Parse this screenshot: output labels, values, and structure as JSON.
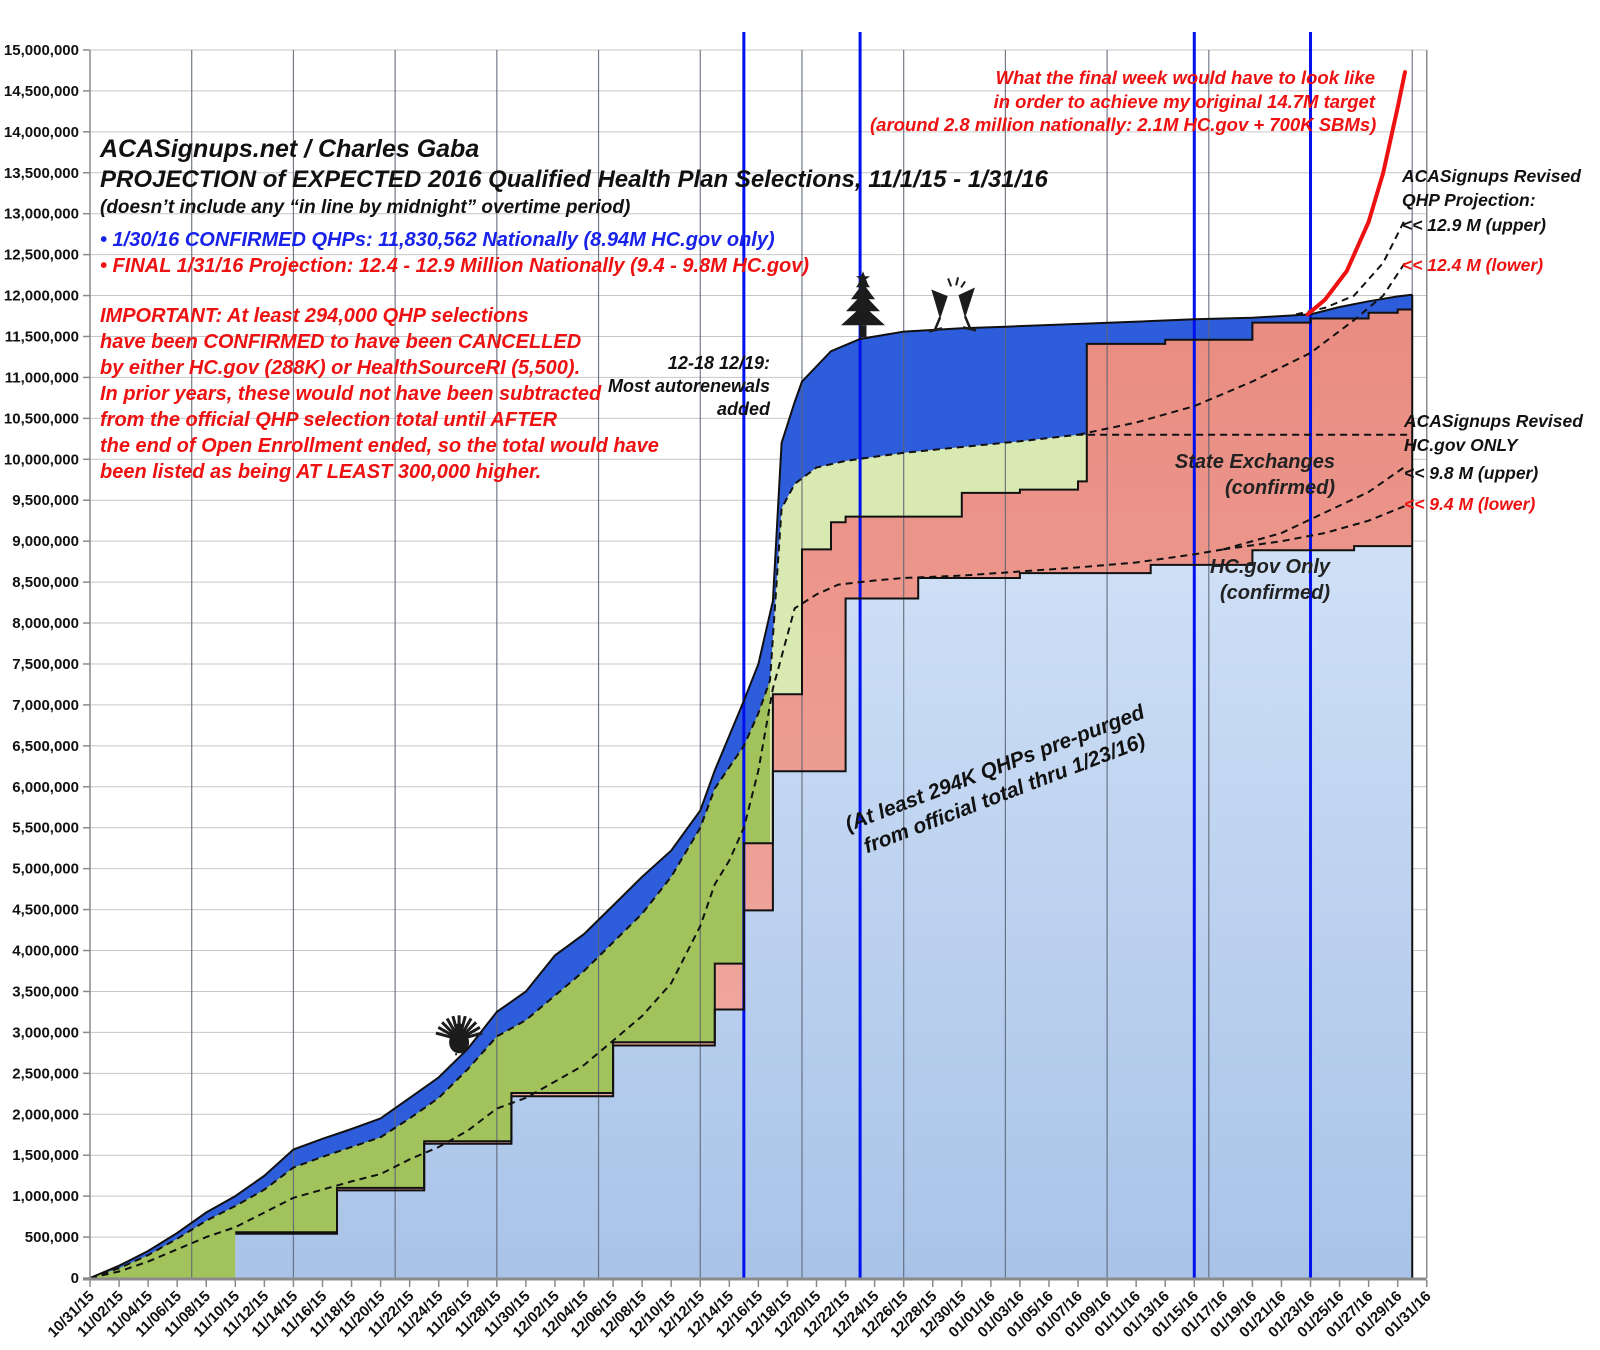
{
  "text": {
    "title": [
      "ACASignups.net / Charles Gaba",
      "PROJECTION of EXPECTED 2016 Qualified Health Plan Selections, 11/1/15 - 1/31/16",
      "(doesn’t include any “in line by midnight” overtime period)"
    ],
    "bullet_blue": "• 1/30/16 CONFIRMED QHPs: 11,830,562 Nationally (8.94M HC.gov only)",
    "bullet_red": "• FINAL 1/31/16 Projection: 12.4 - 12.9 Million Nationally (9.4 - 9.8M HC.gov)",
    "important": [
      "IMPORTANT: At least 294,000 QHP selections",
      "have been CONFIRMED to have been CANCELLED",
      "by either HC.gov (288K) or HealthSourceRI (5,500).",
      "In prior years, these would not have been subtracted",
      "from the official QHP selection total until AFTER",
      "the end of Open Enrollment ended, so the total would have",
      "been listed as being AT LEAST 300,000 higher."
    ],
    "autorenewals": [
      "12-18 12/19:",
      "Most autorenewals",
      "added"
    ],
    "final_week": [
      "What the final week would have to look like",
      "in order to achieve my original 14.7M target",
      "(around 2.8 million nationally: 2.1M HC.gov + 700K SBMs)"
    ],
    "state_exchanges": [
      "State Exchanges",
      "(confirmed)"
    ],
    "hcgov_only": [
      "HC.gov Only",
      "(confirmed)"
    ],
    "prepurged": [
      "(At least 294K QHPs pre-purged",
      "from official total thru 1/23/16)"
    ],
    "legend_qhp": [
      "ACASignups Revised",
      "QHP Projection:",
      "<< 12.9 M (upper)",
      "<< 12.4 M (lower)"
    ],
    "legend_hcgov": [
      "ACASignups Revised",
      "HC.gov ONLY",
      "<< 9.8 M (upper)",
      "<< 9.4 M (lower)"
    ]
  },
  "colors": {
    "blue_area": "#2e5ddc",
    "green_dark": "#a2c25c",
    "green_pale": "#d9e9b2",
    "salmon_top": "#e98c81",
    "salmon_bottom": "#f2afa6",
    "lightblue_top": "#cfe0f6",
    "lightblue_bottom": "#a9c3e8",
    "deadline_line": "#0010ee",
    "red_line": "#ee1111",
    "grid": "#c6c6c6",
    "weekly_grid": "#5a6472",
    "axis": "#8a8a8a",
    "outline": "#111111"
  },
  "chart_data": {
    "type": "area",
    "title": "PROJECTION of EXPECTED 2016 Qualified Health Plan Selections, 11/1/15 - 1/31/16",
    "x_unit": "days since 10/31/15, tick every 2 days",
    "y_axis": {
      "min": 0,
      "max": 15000000,
      "step": 500000
    },
    "x_tick_labels": [
      "10/31/15",
      "11/02/15",
      "11/04/15",
      "11/06/15",
      "11/08/15",
      "11/10/15",
      "11/12/15",
      "11/14/15",
      "11/16/15",
      "11/18/15",
      "11/20/15",
      "11/22/15",
      "11/24/15",
      "11/26/15",
      "11/28/15",
      "11/30/15",
      "12/02/15",
      "12/04/15",
      "12/06/15",
      "12/08/15",
      "12/10/15",
      "12/12/15",
      "12/14/15",
      "12/16/15",
      "12/18/15",
      "12/20/15",
      "12/22/15",
      "12/24/15",
      "12/26/15",
      "12/28/15",
      "12/30/15",
      "01/01/16",
      "01/03/16",
      "01/05/16",
      "01/07/16",
      "01/09/16",
      "01/11/16",
      "01/13/16",
      "01/15/16",
      "01/17/16",
      "01/19/16",
      "01/21/16",
      "01/23/16",
      "01/25/16",
      "01/27/16",
      "01/29/16",
      "01/31/16"
    ],
    "end_day": 91,
    "axis_end_day": 92,
    "series": {
      "projection_total_upper_blue_top_millions": [
        [
          0,
          0
        ],
        [
          2,
          0.15
        ],
        [
          4,
          0.33
        ],
        [
          6,
          0.55
        ],
        [
          8,
          0.8
        ],
        [
          10,
          1.0
        ],
        [
          12,
          1.25
        ],
        [
          14,
          1.57
        ],
        [
          16,
          1.7
        ],
        [
          18,
          1.82
        ],
        [
          20,
          1.95
        ],
        [
          22,
          2.2
        ],
        [
          24,
          2.45
        ],
        [
          26,
          2.8
        ],
        [
          28,
          3.25
        ],
        [
          30,
          3.5
        ],
        [
          32,
          3.94
        ],
        [
          34,
          4.2
        ],
        [
          36,
          4.55
        ],
        [
          38,
          4.9
        ],
        [
          40,
          5.22
        ],
        [
          42,
          5.71
        ],
        [
          43,
          6.2
        ],
        [
          45,
          7.05
        ],
        [
          46,
          7.5
        ],
        [
          47,
          8.27
        ],
        [
          47.6,
          10.2
        ],
        [
          48.5,
          10.7
        ],
        [
          49,
          10.95
        ],
        [
          51,
          11.32
        ],
        [
          53,
          11.47
        ],
        [
          56,
          11.56
        ],
        [
          60,
          11.6
        ],
        [
          63,
          11.62
        ],
        [
          69,
          11.66
        ],
        [
          76,
          11.71
        ],
        [
          80,
          11.73
        ],
        [
          84,
          11.77
        ],
        [
          86,
          11.86
        ],
        [
          88,
          11.93
        ],
        [
          90,
          11.99
        ],
        [
          91,
          12.01
        ]
      ],
      "projection_lower_green_top_millions": [
        [
          0,
          0
        ],
        [
          2,
          0.12
        ],
        [
          4,
          0.28
        ],
        [
          6,
          0.48
        ],
        [
          8,
          0.7
        ],
        [
          10,
          0.88
        ],
        [
          12,
          1.08
        ],
        [
          14,
          1.35
        ],
        [
          16,
          1.48
        ],
        [
          18,
          1.6
        ],
        [
          20,
          1.72
        ],
        [
          22,
          1.95
        ],
        [
          24,
          2.2
        ],
        [
          26,
          2.55
        ],
        [
          28,
          2.95
        ],
        [
          30,
          3.15
        ],
        [
          32,
          3.45
        ],
        [
          34,
          3.75
        ],
        [
          36,
          4.1
        ],
        [
          38,
          4.45
        ],
        [
          40,
          4.9
        ],
        [
          42,
          5.5
        ],
        [
          43,
          5.98
        ],
        [
          45,
          6.5
        ],
        [
          46,
          6.9
        ],
        [
          46.8,
          7.3
        ],
        [
          47.6,
          9.4
        ],
        [
          48.5,
          9.7
        ],
        [
          50,
          9.9
        ],
        [
          52,
          9.98
        ],
        [
          54,
          10.03
        ],
        [
          56,
          10.08
        ],
        [
          60,
          10.15
        ],
        [
          64,
          10.22
        ],
        [
          68,
          10.3
        ],
        [
          91,
          10.3
        ]
      ],
      "green_color_split_day": 46.8,
      "confirmed_total_salmon_steps_millions": [
        [
          10,
          0.56
        ],
        [
          17,
          1.1
        ],
        [
          23,
          1.67
        ],
        [
          29,
          2.26
        ],
        [
          36,
          2.88
        ],
        [
          43,
          3.84
        ],
        [
          45,
          5.31
        ],
        [
          47,
          7.13
        ],
        [
          49,
          8.9
        ],
        [
          51,
          9.23
        ],
        [
          52,
          9.3
        ],
        [
          60,
          9.59
        ],
        [
          64,
          9.63
        ],
        [
          68,
          9.73
        ],
        [
          68.6,
          11.41
        ],
        [
          74,
          11.46
        ],
        [
          80,
          11.67
        ],
        [
          84,
          11.72
        ],
        [
          88,
          11.79
        ],
        [
          90,
          11.83
        ]
      ],
      "hcgov_confirmed_steps_millions": [
        [
          10,
          0.54
        ],
        [
          17,
          1.07
        ],
        [
          23,
          1.64
        ],
        [
          29,
          2.22
        ],
        [
          36,
          2.84
        ],
        [
          43,
          3.28
        ],
        [
          45,
          4.49
        ],
        [
          47,
          6.19
        ],
        [
          52,
          8.3
        ],
        [
          57,
          8.55
        ],
        [
          64,
          8.61
        ],
        [
          73,
          8.71
        ],
        [
          80,
          8.89
        ],
        [
          87,
          8.94
        ]
      ],
      "hcgov_projection_dashed_millions": [
        [
          0,
          0
        ],
        [
          2,
          0.08
        ],
        [
          4,
          0.2
        ],
        [
          6,
          0.35
        ],
        [
          8,
          0.5
        ],
        [
          10,
          0.62
        ],
        [
          12,
          0.8
        ],
        [
          14,
          0.98
        ],
        [
          16,
          1.08
        ],
        [
          18,
          1.18
        ],
        [
          20,
          1.27
        ],
        [
          22,
          1.45
        ],
        [
          24,
          1.6
        ],
        [
          26,
          1.8
        ],
        [
          28,
          2.07
        ],
        [
          30,
          2.2
        ],
        [
          32,
          2.4
        ],
        [
          34,
          2.6
        ],
        [
          36,
          2.9
        ],
        [
          38,
          3.2
        ],
        [
          40,
          3.6
        ],
        [
          42,
          4.3
        ],
        [
          43,
          4.81
        ],
        [
          44,
          5.1
        ],
        [
          45,
          5.5
        ],
        [
          46,
          6.2
        ],
        [
          47,
          7.2
        ],
        [
          48.5,
          8.18
        ],
        [
          50,
          8.35
        ],
        [
          51.5,
          8.47
        ],
        [
          54,
          8.52
        ],
        [
          56,
          8.55
        ],
        [
          60,
          8.58
        ],
        [
          64,
          8.63
        ],
        [
          68,
          8.68
        ],
        [
          72,
          8.74
        ],
        [
          76,
          8.84
        ],
        [
          78,
          8.9
        ]
      ],
      "hcgov_dashed_upper_tail_millions": [
        [
          78,
          8.9
        ],
        [
          82,
          9.1
        ],
        [
          85,
          9.35
        ],
        [
          88,
          9.6
        ],
        [
          90.5,
          9.91
        ]
      ],
      "hcgov_dashed_lower_tail_millions": [
        [
          78,
          8.9
        ],
        [
          82,
          9.0
        ],
        [
          85,
          9.1
        ],
        [
          88,
          9.25
        ],
        [
          90.5,
          9.43
        ]
      ],
      "qhp_dashed_lower_tail_millions": [
        [
          68,
          10.3
        ],
        [
          72,
          10.45
        ],
        [
          76,
          10.65
        ],
        [
          80,
          10.95
        ],
        [
          84,
          11.3
        ],
        [
          87,
          11.7
        ],
        [
          89,
          12.0
        ],
        [
          90.5,
          12.4
        ]
      ],
      "qhp_dashed_upper_tail_millions": [
        [
          83,
          11.77
        ],
        [
          85,
          11.85
        ],
        [
          87,
          12.0
        ],
        [
          89,
          12.4
        ],
        [
          90.5,
          12.93
        ]
      ],
      "final_week_red_line_millions": [
        [
          83.8,
          11.77
        ],
        [
          85,
          11.95
        ],
        [
          86.5,
          12.3
        ],
        [
          88,
          12.9
        ],
        [
          89,
          13.5
        ],
        [
          90,
          14.3
        ],
        [
          90.5,
          14.73
        ]
      ]
    },
    "deadline_vlines_days": [
      45,
      53,
      76,
      84
    ],
    "weekly_gridline_days": [
      7,
      14,
      21,
      28,
      35,
      42,
      49,
      56,
      63,
      70,
      77,
      84,
      91
    ],
    "projection_endpoints": {
      "qhp_upper_M": 12.9,
      "qhp_lower_M": 12.4,
      "hcgov_upper_M": 9.8,
      "hcgov_lower_M": 9.4,
      "final_target_M": 14.7,
      "confirmed_total": 11830562,
      "confirmed_hcgov_M": 8.94
    },
    "icons": [
      {
        "name": "thanksgiving-turkey-icon",
        "day": 25.4,
        "value_M": 2.72
      },
      {
        "name": "christmas-tree-icon",
        "day": 53.2,
        "value_M": 11.49
      },
      {
        "name": "champagne-glasses-icon",
        "day": 59.4,
        "value_M": 11.55
      }
    ]
  }
}
